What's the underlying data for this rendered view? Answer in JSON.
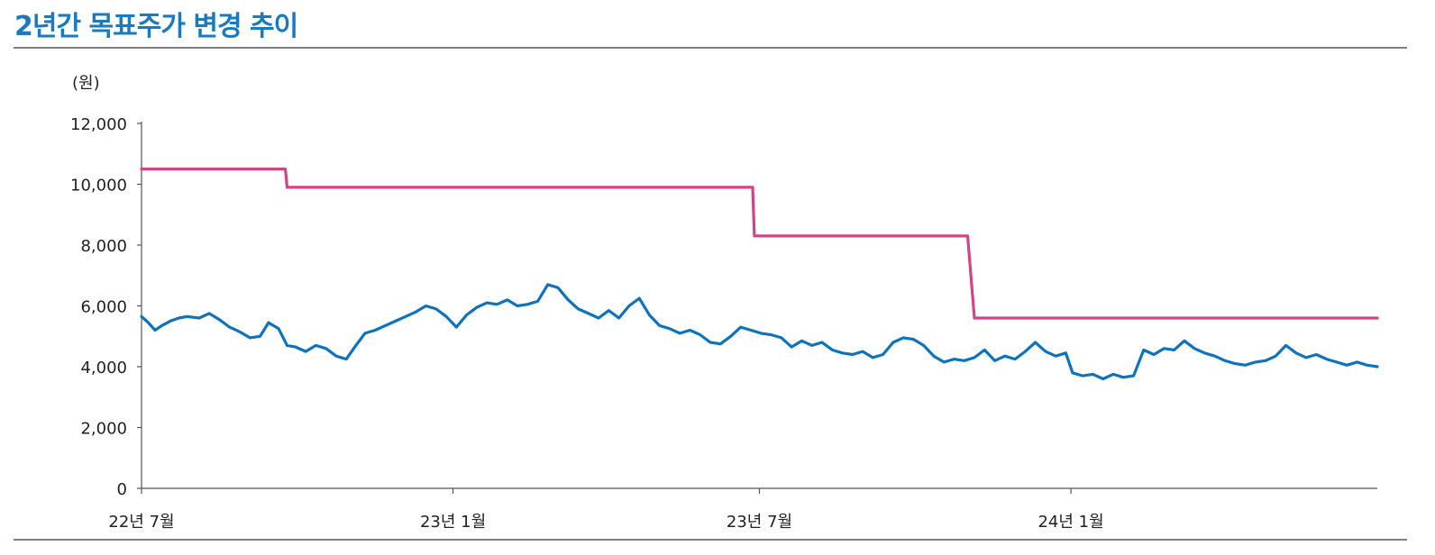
{
  "title": "2년간 목표주가 변경 추이",
  "colors": {
    "title": "#1a7ac0",
    "price_line": "#0e72bd",
    "target_line": "#d0448a",
    "axis": "#555555",
    "rule": "#7f7f7f"
  },
  "chart_data": {
    "type": "line",
    "title": "",
    "ylabel": "(원)",
    "xlabel": "",
    "ylim": [
      0,
      12000
    ],
    "yticks": [
      0,
      2000,
      4000,
      6000,
      8000,
      10000,
      12000
    ],
    "ytick_labels": [
      "0",
      "2,000",
      "4,000",
      "6,000",
      "8,000",
      "10,000",
      "12,000"
    ],
    "x_range": [
      "2022-07-01",
      "2024-06-30"
    ],
    "xticks": [
      "2022-07-01",
      "2023-01-01",
      "2023-07-01",
      "2024-01-01"
    ],
    "xtick_labels": [
      "22년 7월",
      "23년 1월",
      "23년 7월",
      "24년 1월"
    ],
    "grid": false,
    "legend": "none",
    "series": [
      {
        "name": "",
        "role": "target_price",
        "step": true,
        "points": [
          [
            "2022-07-01",
            10500
          ],
          [
            "2022-09-24",
            10500
          ],
          [
            "2022-09-25",
            9900
          ],
          [
            "2023-06-27",
            9900
          ],
          [
            "2023-06-28",
            8300
          ],
          [
            "2023-11-01",
            8300
          ],
          [
            "2023-11-05",
            5600
          ],
          [
            "2024-06-30",
            5600
          ]
        ]
      },
      {
        "name": "",
        "role": "share_price",
        "step": false,
        "points": [
          [
            "2022-07-01",
            5650
          ],
          [
            "2022-07-05",
            5450
          ],
          [
            "2022-07-09",
            5200
          ],
          [
            "2022-07-13",
            5350
          ],
          [
            "2022-07-18",
            5500
          ],
          [
            "2022-07-23",
            5600
          ],
          [
            "2022-07-28",
            5650
          ],
          [
            "2022-08-04",
            5600
          ],
          [
            "2022-08-10",
            5750
          ],
          [
            "2022-08-16",
            5550
          ],
          [
            "2022-08-22",
            5300
          ],
          [
            "2022-08-28",
            5150
          ],
          [
            "2022-09-03",
            4950
          ],
          [
            "2022-09-09",
            5000
          ],
          [
            "2022-09-14",
            5450
          ],
          [
            "2022-09-20",
            5250
          ],
          [
            "2022-09-25",
            4700
          ],
          [
            "2022-09-30",
            4650
          ],
          [
            "2022-10-06",
            4500
          ],
          [
            "2022-10-12",
            4700
          ],
          [
            "2022-10-18",
            4600
          ],
          [
            "2022-10-24",
            4350
          ],
          [
            "2022-10-30",
            4250
          ],
          [
            "2022-11-04",
            4650
          ],
          [
            "2022-11-10",
            5100
          ],
          [
            "2022-11-16",
            5200
          ],
          [
            "2022-11-22",
            5350
          ],
          [
            "2022-11-28",
            5500
          ],
          [
            "2022-12-04",
            5650
          ],
          [
            "2022-12-10",
            5800
          ],
          [
            "2022-12-16",
            6000
          ],
          [
            "2022-12-22",
            5900
          ],
          [
            "2022-12-28",
            5650
          ],
          [
            "2023-01-03",
            5300
          ],
          [
            "2023-01-09",
            5700
          ],
          [
            "2023-01-15",
            5950
          ],
          [
            "2023-01-21",
            6100
          ],
          [
            "2023-01-27",
            6050
          ],
          [
            "2023-02-02",
            6200
          ],
          [
            "2023-02-08",
            6000
          ],
          [
            "2023-02-14",
            6050
          ],
          [
            "2023-02-20",
            6150
          ],
          [
            "2023-02-26",
            6700
          ],
          [
            "2023-03-04",
            6600
          ],
          [
            "2023-03-10",
            6200
          ],
          [
            "2023-03-16",
            5900
          ],
          [
            "2023-03-22",
            5750
          ],
          [
            "2023-03-28",
            5600
          ],
          [
            "2023-04-03",
            5850
          ],
          [
            "2023-04-09",
            5600
          ],
          [
            "2023-04-15",
            6000
          ],
          [
            "2023-04-21",
            6250
          ],
          [
            "2023-04-27",
            5700
          ],
          [
            "2023-05-03",
            5350
          ],
          [
            "2023-05-09",
            5250
          ],
          [
            "2023-05-15",
            5100
          ],
          [
            "2023-05-21",
            5200
          ],
          [
            "2023-05-27",
            5050
          ],
          [
            "2023-06-02",
            4800
          ],
          [
            "2023-06-08",
            4750
          ],
          [
            "2023-06-14",
            5000
          ],
          [
            "2023-06-20",
            5300
          ],
          [
            "2023-06-26",
            5200
          ],
          [
            "2023-07-02",
            5100
          ],
          [
            "2023-07-08",
            5050
          ],
          [
            "2023-07-14",
            4950
          ],
          [
            "2023-07-20",
            4650
          ],
          [
            "2023-07-26",
            4850
          ],
          [
            "2023-08-01",
            4700
          ],
          [
            "2023-08-07",
            4800
          ],
          [
            "2023-08-13",
            4550
          ],
          [
            "2023-08-19",
            4450
          ],
          [
            "2023-08-25",
            4400
          ],
          [
            "2023-08-31",
            4500
          ],
          [
            "2023-09-06",
            4300
          ],
          [
            "2023-09-12",
            4400
          ],
          [
            "2023-09-18",
            4800
          ],
          [
            "2023-09-24",
            4950
          ],
          [
            "2023-09-30",
            4900
          ],
          [
            "2023-10-06",
            4700
          ],
          [
            "2023-10-12",
            4350
          ],
          [
            "2023-10-18",
            4150
          ],
          [
            "2023-10-24",
            4250
          ],
          [
            "2023-10-30",
            4200
          ],
          [
            "2023-11-05",
            4300
          ],
          [
            "2023-11-11",
            4550
          ],
          [
            "2023-11-17",
            4200
          ],
          [
            "2023-11-23",
            4350
          ],
          [
            "2023-11-29",
            4250
          ],
          [
            "2023-12-05",
            4500
          ],
          [
            "2023-12-11",
            4800
          ],
          [
            "2023-12-17",
            4500
          ],
          [
            "2023-12-23",
            4350
          ],
          [
            "2023-12-29",
            4450
          ],
          [
            "2024-01-02",
            3800
          ],
          [
            "2024-01-08",
            3700
          ],
          [
            "2024-01-14",
            3750
          ],
          [
            "2024-01-20",
            3600
          ],
          [
            "2024-01-26",
            3750
          ],
          [
            "2024-02-01",
            3650
          ],
          [
            "2024-02-07",
            3700
          ],
          [
            "2024-02-13",
            4550
          ],
          [
            "2024-02-19",
            4400
          ],
          [
            "2024-02-25",
            4600
          ],
          [
            "2024-03-02",
            4550
          ],
          [
            "2024-03-08",
            4850
          ],
          [
            "2024-03-14",
            4600
          ],
          [
            "2024-03-20",
            4450
          ],
          [
            "2024-03-26",
            4350
          ],
          [
            "2024-04-01",
            4200
          ],
          [
            "2024-04-07",
            4100
          ],
          [
            "2024-04-13",
            4050
          ],
          [
            "2024-04-19",
            4150
          ],
          [
            "2024-04-25",
            4200
          ],
          [
            "2024-05-01",
            4350
          ],
          [
            "2024-05-07",
            4700
          ],
          [
            "2024-05-13",
            4450
          ],
          [
            "2024-05-19",
            4300
          ],
          [
            "2024-05-25",
            4400
          ],
          [
            "2024-05-31",
            4250
          ],
          [
            "2024-06-06",
            4150
          ],
          [
            "2024-06-12",
            4050
          ],
          [
            "2024-06-18",
            4150
          ],
          [
            "2024-06-24",
            4050
          ],
          [
            "2024-06-30",
            4000
          ]
        ]
      }
    ]
  }
}
